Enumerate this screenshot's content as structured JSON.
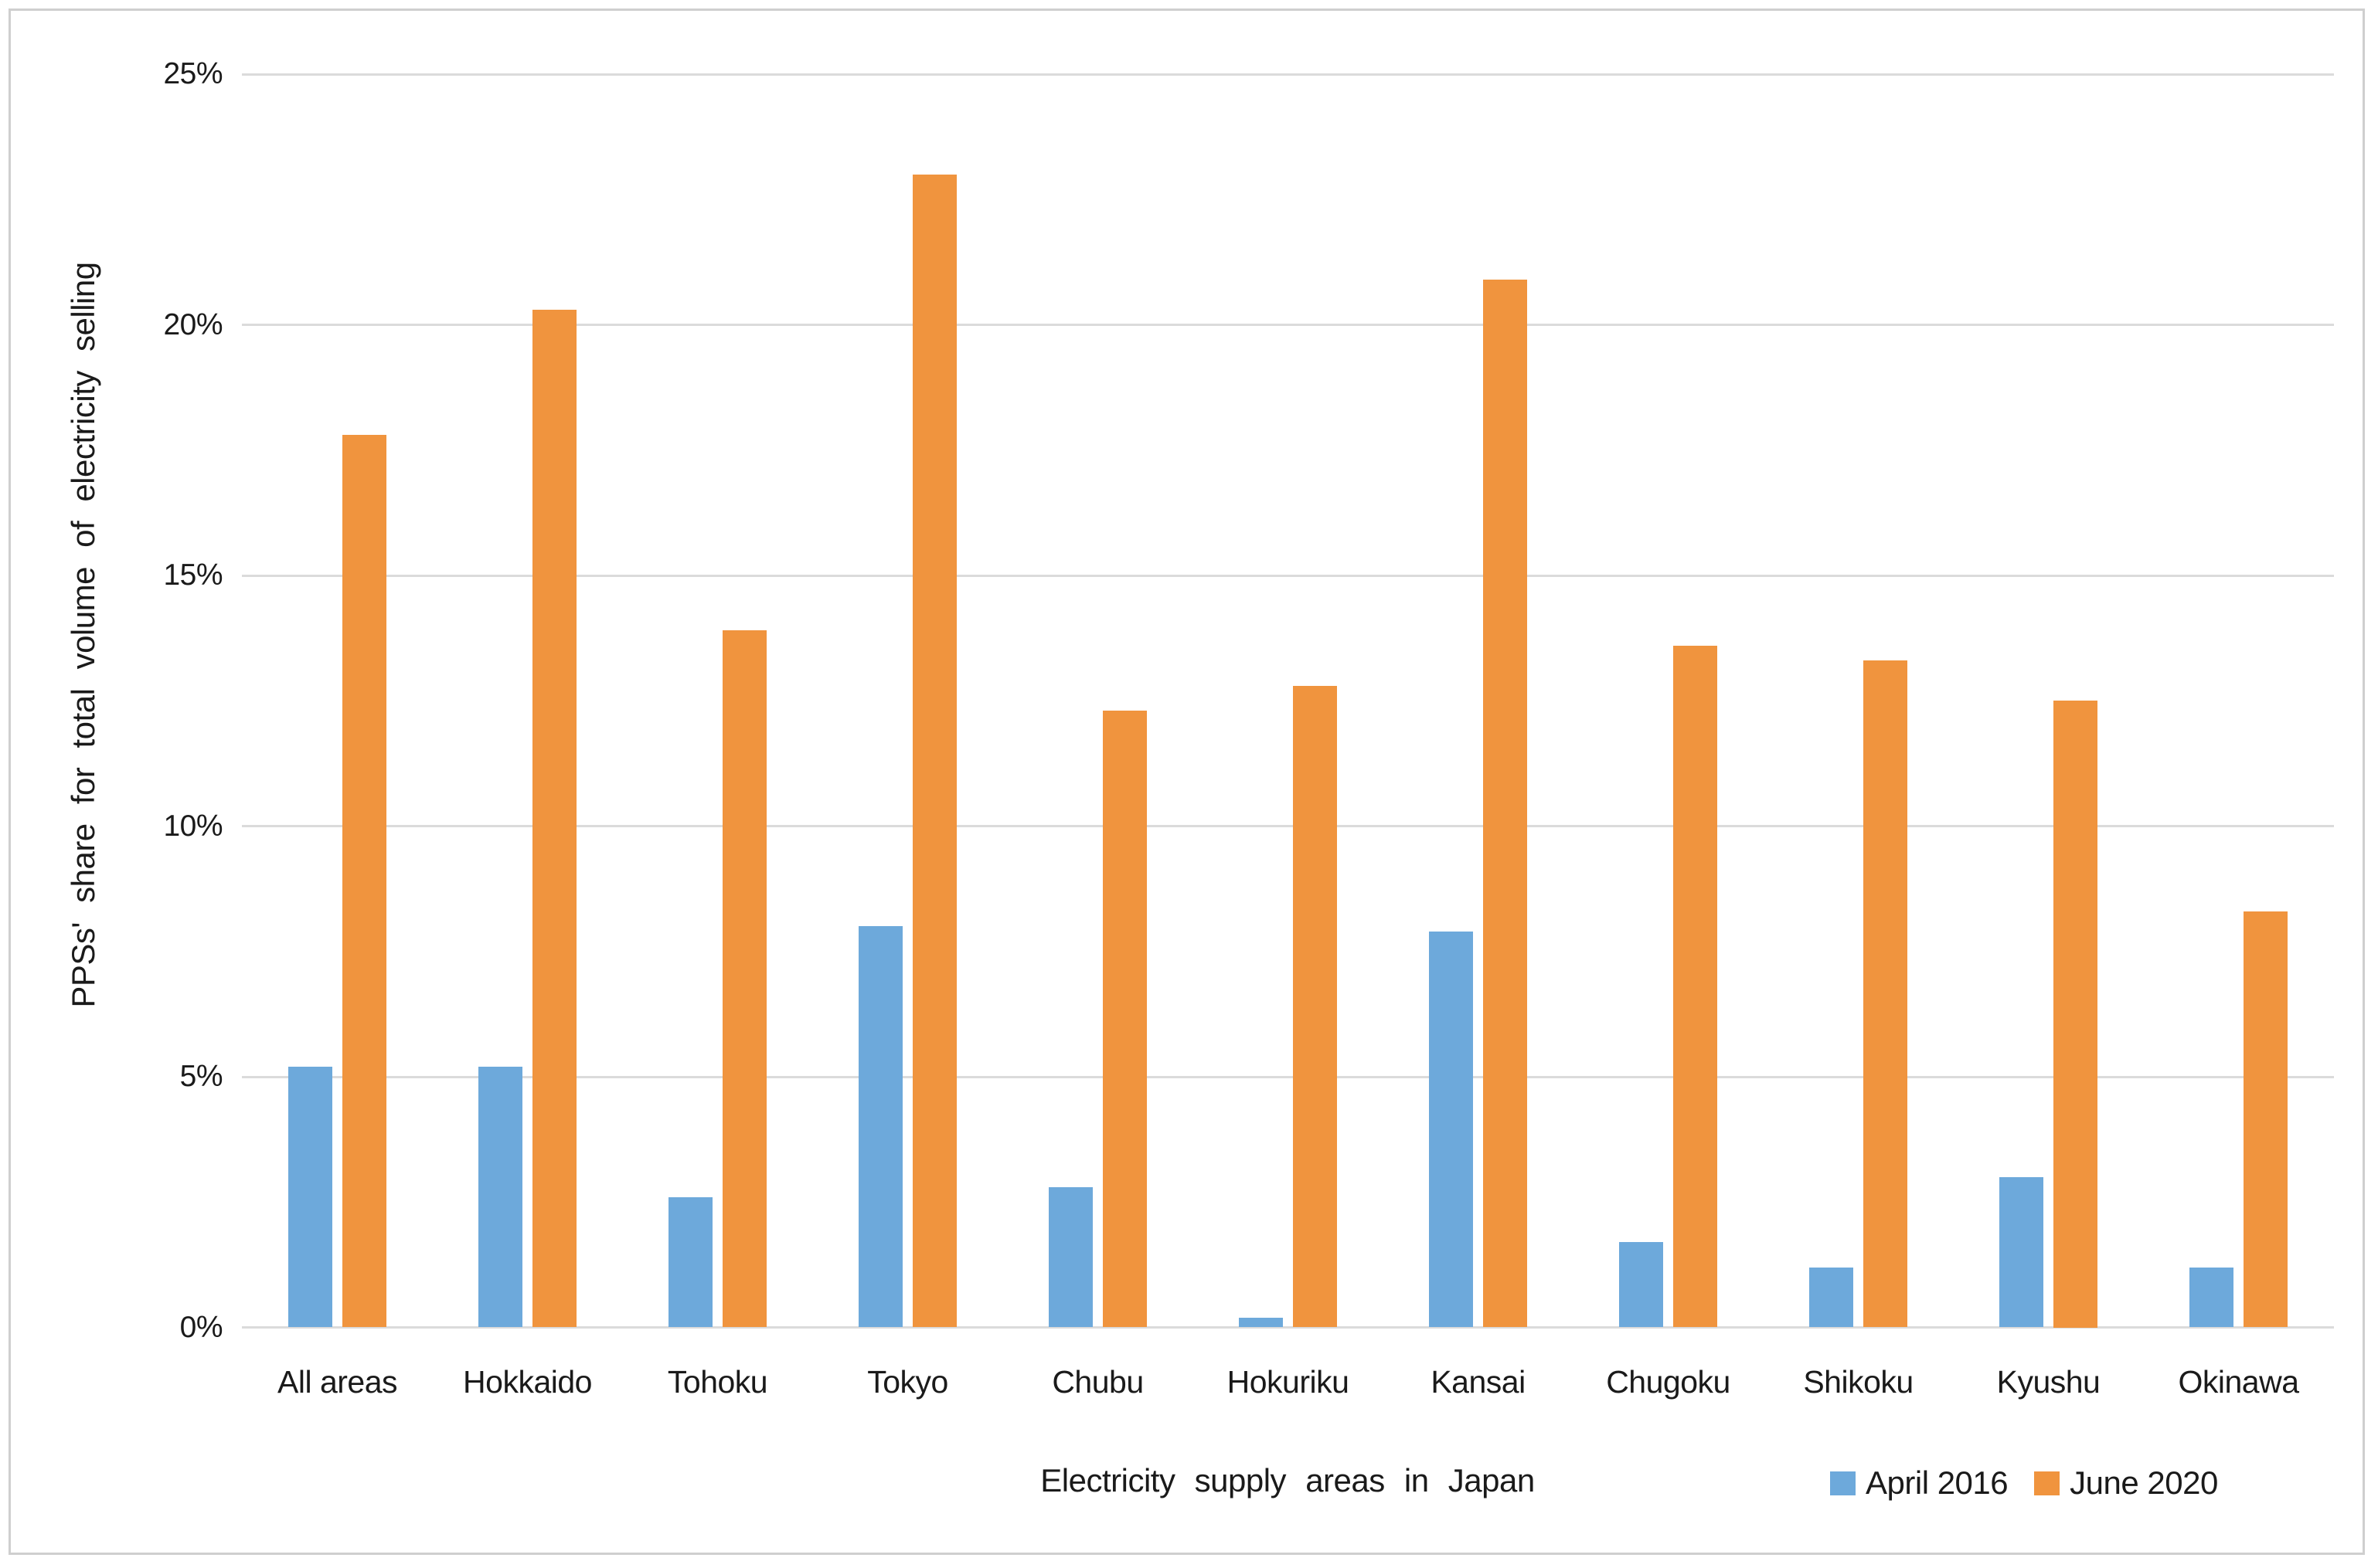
{
  "chart_data": {
    "type": "bar",
    "title": "",
    "categories": [
      "All areas",
      "Hokkaido",
      "Tohoku",
      "Tokyo",
      "Chubu",
      "Hokuriku",
      "Kansai",
      "Chugoku",
      "Shikoku",
      "Kyushu",
      "Okinawa"
    ],
    "series": [
      {
        "name": "April 2016",
        "color": "#6DA9DB",
        "values": [
          5.2,
          5.2,
          2.6,
          8.0,
          2.8,
          0.2,
          7.9,
          1.7,
          1.2,
          3.0,
          1.2
        ]
      },
      {
        "name": "June 2020",
        "color": "#F0943E",
        "values": [
          17.8,
          20.3,
          13.9,
          23.0,
          12.3,
          12.8,
          20.9,
          13.6,
          13.3,
          12.5,
          8.3
        ]
      }
    ],
    "xlabel": "Electricity supply areas in Japan",
    "ylabel": "PPSs' share for total volume of electricity selling",
    "ylim": [
      0,
      25
    ],
    "yticks": [
      {
        "value": 0,
        "label": "0%"
      },
      {
        "value": 5,
        "label": "5%"
      },
      {
        "value": 10,
        "label": "10%"
      },
      {
        "value": 15,
        "label": "15%"
      },
      {
        "value": 20,
        "label": "20%"
      },
      {
        "value": 25,
        "label": "25%"
      }
    ],
    "grid": true,
    "legend_position": "bottom-right",
    "colors": {
      "april_2016": "#6DA9DB",
      "june_2020": "#F0943E",
      "gridline": "#DBDBDB",
      "text": "#1A1A1A",
      "figure_border": "#CFCFCF"
    }
  }
}
